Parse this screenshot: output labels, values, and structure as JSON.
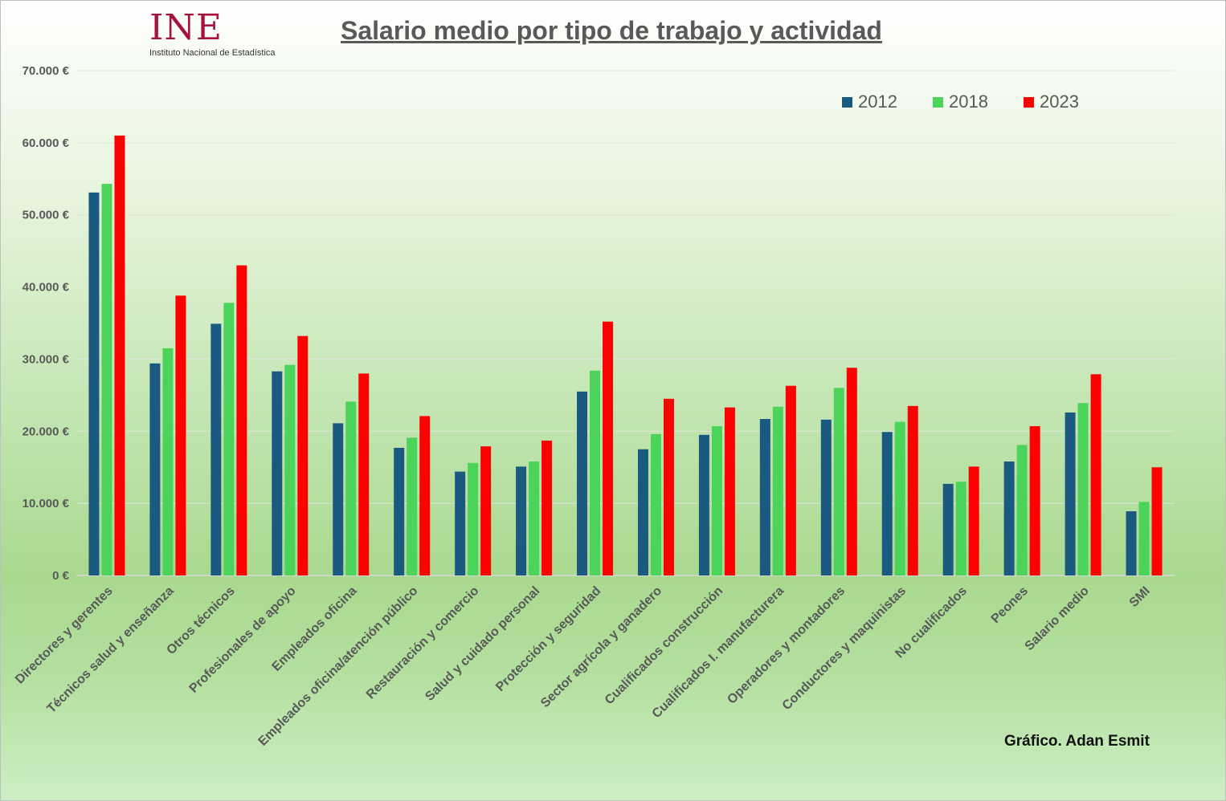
{
  "header": {
    "title": "Salario medio por tipo de trabajo y actividad",
    "logo_text": "INE",
    "logo_subtitle": "Instituto Nacional de Estadística"
  },
  "credit": "Gráfico. Adan Esmit",
  "chart_data": {
    "type": "bar",
    "title": "Salario medio por tipo de trabajo y actividad",
    "xlabel": "",
    "ylabel": "",
    "ylim": [
      0,
      70000
    ],
    "yticks": [
      0,
      10000,
      20000,
      30000,
      40000,
      50000,
      60000,
      70000
    ],
    "ytick_labels": [
      "0 €",
      "10.000 €",
      "20.000 €",
      "30.000 €",
      "40.000 €",
      "50.000 €",
      "60.000 €",
      "70.000 €"
    ],
    "grid": true,
    "legend_position": "top-right",
    "categories": [
      "Directores y gerentes",
      "Técnicos salud y enseñanza",
      "Otros técnicos",
      "Profesionales de apoyo",
      "Empleados oficina",
      "Empleados oficina/atención público",
      "Restauración y comercio",
      "Salud y cuidado personal",
      "Protección y seguridad",
      "Sector agrícola y ganadero",
      "Cualificados construcción",
      "Cualificados I. manufacturera",
      "Operadores y montadores",
      "Conductores y maquinistas",
      "No cualificados",
      "Peones",
      "Salario medio",
      "SMI"
    ],
    "series": [
      {
        "name": "2012",
        "color": "#1a5a80",
        "values": [
          53100,
          29400,
          34900,
          28300,
          21100,
          17700,
          14400,
          15100,
          25500,
          17500,
          19500,
          21700,
          21600,
          19900,
          12700,
          15800,
          22600,
          8900
        ]
      },
      {
        "name": "2018",
        "color": "#4cd35a",
        "values": [
          54300,
          31500,
          37800,
          29200,
          24100,
          19100,
          15600,
          15800,
          28400,
          19600,
          20700,
          23400,
          26000,
          21300,
          13000,
          18100,
          23900,
          10200
        ]
      },
      {
        "name": "2023",
        "color": "#ff0000",
        "values": [
          61000,
          38800,
          43000,
          33200,
          28000,
          22100,
          17900,
          18700,
          35200,
          24500,
          23300,
          26300,
          28800,
          23500,
          15100,
          20700,
          27900,
          15000
        ]
      }
    ]
  }
}
